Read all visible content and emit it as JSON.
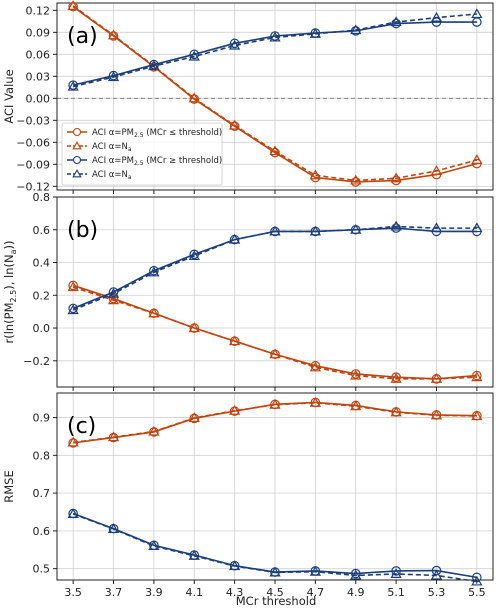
{
  "figure": {
    "xlabel": "MCr threshold",
    "x_tick_labels": [
      "3.5",
      "3.7",
      "3.9",
      "4.1",
      "4.3",
      "4.5",
      "4.7",
      "4.9",
      "5.1",
      "5.3",
      "5.5"
    ],
    "colors": {
      "orange": "#c1440e",
      "blue": "#1a3f7a",
      "grid": "#d0d0d0",
      "zero_line": "#888888"
    }
  },
  "chart_data": [
    {
      "id": "a",
      "type": "line",
      "panel_label": "(a)",
      "ylabel": "ACI Value",
      "ylim": [
        -0.125,
        0.13
      ],
      "yticks": [
        -0.12,
        -0.09,
        -0.06,
        -0.03,
        0.0,
        0.03,
        0.06,
        0.09,
        0.12
      ],
      "ytick_labels": [
        "−0.12",
        "−0.09",
        "−0.06",
        "−0.03",
        "0.00",
        "0.03",
        "0.06",
        "0.09",
        "0.12"
      ],
      "zero_line": true,
      "grid": true,
      "x": [
        3.5,
        3.7,
        3.9,
        4.1,
        4.3,
        4.5,
        4.7,
        4.9,
        5.1,
        5.3,
        5.5
      ],
      "legend_position": "lower-left",
      "series": [
        {
          "name": "ACI α=PM2.5 (MCr ≤ threshold)",
          "legend_main": "ACI α=PM",
          "legend_sub": "2.5",
          "legend_tail": " (MCr ≤ threshold)",
          "color": "#c1440e",
          "style": "solid",
          "marker": "circle",
          "values": [
            0.125,
            0.085,
            0.043,
            -0.001,
            -0.038,
            -0.074,
            -0.108,
            -0.114,
            -0.112,
            -0.104,
            -0.089
          ]
        },
        {
          "name": "ACI α=Na",
          "legend_main": "ACI α=N",
          "legend_sub": "a",
          "legend_tail": "",
          "color": "#c1440e",
          "style": "dashed",
          "marker": "triangle",
          "values": [
            0.126,
            0.086,
            0.044,
            0.0,
            -0.037,
            -0.072,
            -0.105,
            -0.112,
            -0.109,
            -0.099,
            -0.084
          ]
        },
        {
          "name": "ACI α=PM2.5 (MCr ≥ threshold)",
          "legend_main": "ACI α=PM",
          "legend_sub": "2.5",
          "legend_tail": " (MCr ≥ threshold)",
          "color": "#1a3f7a",
          "style": "solid",
          "marker": "circle",
          "values": [
            0.018,
            0.031,
            0.046,
            0.06,
            0.075,
            0.085,
            0.089,
            0.092,
            0.102,
            0.104,
            0.104
          ]
        },
        {
          "name": "ACI α=Na",
          "legend_main": "ACI α=N",
          "legend_sub": "a",
          "legend_tail": "",
          "color": "#1a3f7a",
          "style": "dashed",
          "marker": "triangle",
          "values": [
            0.016,
            0.029,
            0.044,
            0.057,
            0.072,
            0.083,
            0.088,
            0.093,
            0.104,
            0.11,
            0.115
          ]
        }
      ]
    },
    {
      "id": "b",
      "type": "line",
      "panel_label": "(b)",
      "ylabel": "r(ln(PM2.5), ln(Na))",
      "ylabel_parts": [
        "r(ln(PM",
        "2.5",
        "), ln(N",
        "a",
        "))"
      ],
      "ylim": [
        -0.36,
        0.8
      ],
      "yticks": [
        -0.2,
        0.0,
        0.2,
        0.4,
        0.6,
        0.8
      ],
      "ytick_labels": [
        "−0.2",
        "0.0",
        "0.2",
        "0.4",
        "0.6",
        "0.8"
      ],
      "zero_line": false,
      "grid": true,
      "x": [
        3.5,
        3.7,
        3.9,
        4.1,
        4.3,
        4.5,
        4.7,
        4.9,
        5.1,
        5.3,
        5.5
      ],
      "series": [
        {
          "name": "orange-solid",
          "color": "#c1440e",
          "style": "solid",
          "marker": "circle",
          "values": [
            0.26,
            0.18,
            0.09,
            0.0,
            -0.08,
            -0.16,
            -0.23,
            -0.28,
            -0.3,
            -0.31,
            -0.29
          ]
        },
        {
          "name": "orange-dashed",
          "color": "#c1440e",
          "style": "dashed",
          "marker": "triangle",
          "values": [
            0.25,
            0.17,
            0.09,
            0.0,
            -0.08,
            -0.16,
            -0.24,
            -0.29,
            -0.31,
            -0.31,
            -0.3
          ]
        },
        {
          "name": "blue-solid",
          "color": "#1a3f7a",
          "style": "solid",
          "marker": "circle",
          "values": [
            0.12,
            0.22,
            0.35,
            0.45,
            0.54,
            0.59,
            0.59,
            0.6,
            0.61,
            0.59,
            0.59
          ]
        },
        {
          "name": "blue-dashed",
          "color": "#1a3f7a",
          "style": "dashed",
          "marker": "triangle",
          "values": [
            0.11,
            0.21,
            0.34,
            0.44,
            0.54,
            0.59,
            0.59,
            0.6,
            0.62,
            0.61,
            0.61
          ]
        }
      ]
    },
    {
      "id": "c",
      "type": "line",
      "panel_label": "(c)",
      "ylabel": "RMSE",
      "ylim": [
        0.47,
        0.965
      ],
      "yticks": [
        0.5,
        0.6,
        0.7,
        0.8,
        0.9
      ],
      "ytick_labels": [
        "0.5",
        "0.6",
        "0.7",
        "0.8",
        "0.9"
      ],
      "zero_line": false,
      "grid": true,
      "x": [
        3.5,
        3.7,
        3.9,
        4.1,
        4.3,
        4.5,
        4.7,
        4.9,
        5.1,
        5.3,
        5.5
      ],
      "series": [
        {
          "name": "orange-solid",
          "color": "#c1440e",
          "style": "solid",
          "marker": "circle",
          "values": [
            0.833,
            0.847,
            0.862,
            0.898,
            0.917,
            0.935,
            0.94,
            0.932,
            0.915,
            0.907,
            0.905
          ]
        },
        {
          "name": "orange-dashed",
          "color": "#c1440e",
          "style": "dashed",
          "marker": "triangle",
          "values": [
            0.834,
            0.848,
            0.863,
            0.899,
            0.918,
            0.934,
            0.939,
            0.93,
            0.914,
            0.906,
            0.904
          ]
        },
        {
          "name": "blue-solid",
          "color": "#1a3f7a",
          "style": "solid",
          "marker": "circle",
          "values": [
            0.646,
            0.606,
            0.562,
            0.536,
            0.508,
            0.491,
            0.494,
            0.487,
            0.494,
            0.495,
            0.477
          ]
        },
        {
          "name": "blue-dashed",
          "color": "#1a3f7a",
          "style": "dashed",
          "marker": "triangle",
          "values": [
            0.645,
            0.605,
            0.56,
            0.534,
            0.507,
            0.49,
            0.492,
            0.482,
            0.486,
            0.482,
            0.466
          ]
        }
      ]
    }
  ]
}
